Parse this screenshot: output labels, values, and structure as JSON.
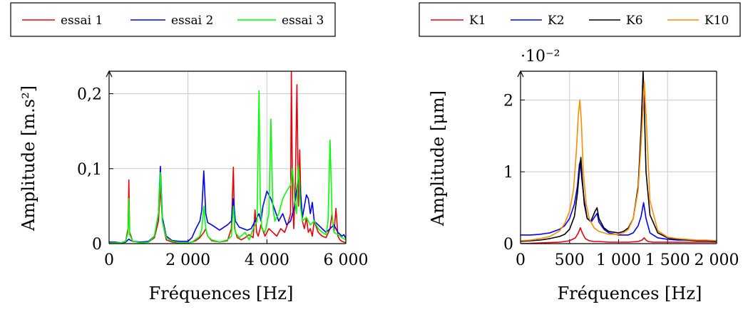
{
  "chart_data": [
    {
      "type": "line",
      "xlabel": "Fréquences [Hz]",
      "ylabel": "Amplitude [m.s²]",
      "xlim": [
        0,
        6000
      ],
      "ylim": [
        0,
        0.23
      ],
      "grid": true,
      "legend_position": "top",
      "xticks": [
        {
          "value": 0,
          "label": "0"
        },
        {
          "value": 2000,
          "label": "2 000"
        },
        {
          "value": 4000,
          "label": "4 000"
        },
        {
          "value": 6000,
          "label": "6 000"
        }
      ],
      "yticks": [
        {
          "value": 0,
          "label": "0"
        },
        {
          "value": 0.1,
          "label": "0,1"
        },
        {
          "value": 0.2,
          "label": "0,2"
        }
      ],
      "series": [
        {
          "name": "essai 1",
          "color": "#e8000b",
          "x": [
            0,
            150,
            300,
            420,
            480,
            500,
            520,
            600,
            800,
            1000,
            1150,
            1250,
            1300,
            1350,
            1450,
            1600,
            1800,
            2000,
            2100,
            2200,
            2300,
            2400,
            2450,
            2500,
            2600,
            2800,
            3000,
            3100,
            3150,
            3180,
            3250,
            3350,
            3450,
            3550,
            3650,
            3700,
            3740,
            3780,
            3850,
            3950,
            4050,
            4150,
            4250,
            4350,
            4450,
            4550,
            4600,
            4620,
            4650,
            4680,
            4720,
            4760,
            4800,
            4830,
            4860,
            4900,
            4950,
            5000,
            5050,
            5100,
            5150,
            5200,
            5300,
            5400,
            5500,
            5600,
            5650,
            5700,
            5750,
            5800,
            5850,
            5900,
            5950,
            6000
          ],
          "values": [
            0.001,
            0.001,
            0.001,
            0.003,
            0.02,
            0.085,
            0.015,
            0.003,
            0.001,
            0.002,
            0.008,
            0.03,
            0.075,
            0.03,
            0.005,
            0.002,
            0.001,
            0.001,
            0.002,
            0.004,
            0.008,
            0.015,
            0.02,
            0.01,
            0.004,
            0.002,
            0.004,
            0.02,
            0.102,
            0.02,
            0.008,
            0.005,
            0.008,
            0.012,
            0.008,
            0.045,
            0.015,
            0.01,
            0.025,
            0.01,
            0.02,
            0.015,
            0.01,
            0.02,
            0.015,
            0.03,
            0.04,
            0.23,
            0.06,
            0.02,
            0.08,
            0.212,
            0.05,
            0.125,
            0.06,
            0.03,
            0.02,
            0.035,
            0.015,
            0.02,
            0.01,
            0.03,
            0.015,
            0.01,
            0.008,
            0.02,
            0.04,
            0.015,
            0.047,
            0.01,
            0.005,
            0.003,
            0.002,
            0.001
          ]
        },
        {
          "name": "essai 2",
          "color": "#0000ff",
          "x": [
            0,
            150,
            300,
            420,
            480,
            500,
            520,
            600,
            800,
            1000,
            1150,
            1250,
            1300,
            1350,
            1450,
            1600,
            1800,
            2000,
            2100,
            2200,
            2300,
            2350,
            2400,
            2450,
            2500,
            2600,
            2800,
            3000,
            3100,
            3150,
            3200,
            3300,
            3400,
            3500,
            3600,
            3700,
            3800,
            3850,
            3900,
            4000,
            4100,
            4200,
            4300,
            4400,
            4500,
            4600,
            4700,
            4800,
            4850,
            4900,
            5000,
            5050,
            5100,
            5150,
            5200,
            5300,
            5400,
            5500,
            5600,
            5700,
            5800,
            5900,
            5950,
            6000
          ],
          "values": [
            0.002,
            0.002,
            0.001,
            0.002,
            0.005,
            0.006,
            0.005,
            0.003,
            0.002,
            0.003,
            0.01,
            0.04,
            0.103,
            0.035,
            0.01,
            0.004,
            0.003,
            0.003,
            0.008,
            0.02,
            0.03,
            0.045,
            0.097,
            0.04,
            0.028,
            0.025,
            0.018,
            0.025,
            0.03,
            0.06,
            0.03,
            0.022,
            0.02,
            0.018,
            0.02,
            0.03,
            0.04,
            0.03,
            0.05,
            0.07,
            0.06,
            0.045,
            0.03,
            0.04,
            0.025,
            0.03,
            0.05,
            0.09,
            0.07,
            0.035,
            0.065,
            0.06,
            0.04,
            0.055,
            0.03,
            0.025,
            0.02,
            0.015,
            0.02,
            0.025,
            0.015,
            0.01,
            0.012,
            0.007
          ]
        },
        {
          "name": "essai 3",
          "color": "#00ff00",
          "x": [
            0,
            150,
            300,
            420,
            480,
            500,
            520,
            600,
            800,
            1000,
            1150,
            1250,
            1300,
            1350,
            1450,
            1600,
            1800,
            2000,
            2100,
            2200,
            2300,
            2350,
            2400,
            2450,
            2500,
            2600,
            2800,
            3000,
            3100,
            3150,
            3200,
            3300,
            3450,
            3550,
            3650,
            3750,
            3800,
            3830,
            3870,
            3950,
            4050,
            4100,
            4150,
            4200,
            4300,
            4400,
            4500,
            4600,
            4650,
            4700,
            4750,
            4800,
            4850,
            4900,
            5000,
            5100,
            5200,
            5300,
            5400,
            5500,
            5550,
            5600,
            5650,
            5700,
            5800,
            5900,
            6000
          ],
          "values": [
            0.001,
            0.001,
            0.001,
            0.003,
            0.015,
            0.06,
            0.012,
            0.003,
            0.001,
            0.002,
            0.01,
            0.04,
            0.095,
            0.03,
            0.008,
            0.003,
            0.001,
            0.001,
            0.002,
            0.006,
            0.01,
            0.02,
            0.05,
            0.02,
            0.01,
            0.005,
            0.002,
            0.005,
            0.01,
            0.05,
            0.015,
            0.008,
            0.015,
            0.005,
            0.02,
            0.03,
            0.204,
            0.06,
            0.02,
            0.015,
            0.04,
            0.166,
            0.05,
            0.03,
            0.04,
            0.06,
            0.07,
            0.078,
            0.1,
            0.06,
            0.04,
            0.105,
            0.05,
            0.03,
            0.035,
            0.025,
            0.03,
            0.02,
            0.015,
            0.012,
            0.03,
            0.138,
            0.04,
            0.015,
            0.012,
            0.008,
            0.005
          ]
        }
      ]
    },
    {
      "type": "line",
      "xlabel": "Fréquences [Hz]",
      "ylabel": "Amplitude [μm]",
      "y_multiplier": "·10⁻²",
      "xlim": [
        0,
        2000
      ],
      "ylim": [
        0,
        2.4
      ],
      "grid": true,
      "legend_position": "top",
      "xticks": [
        {
          "value": 0,
          "label": "0"
        },
        {
          "value": 500,
          "label": "500"
        },
        {
          "value": 1000,
          "label": "1 000"
        },
        {
          "value": 1500,
          "label": "1 500"
        },
        {
          "value": 2000,
          "label": "2 000"
        }
      ],
      "yticks": [
        {
          "value": 0,
          "label": "0"
        },
        {
          "value": 1,
          "label": "1"
        },
        {
          "value": 2,
          "label": "2"
        }
      ],
      "series": [
        {
          "name": "K1",
          "color": "#e8000b",
          "x": [
            0,
            200,
            400,
            500,
            560,
            590,
            610,
            630,
            660,
            700,
            750,
            800,
            900,
            1000,
            1100,
            1200,
            1240,
            1260,
            1280,
            1300,
            1350,
            1400,
            1500,
            1600,
            1700,
            1800,
            1900,
            2000
          ],
          "values": [
            0.0,
            0.01,
            0.02,
            0.04,
            0.08,
            0.15,
            0.22,
            0.15,
            0.07,
            0.04,
            0.03,
            0.03,
            0.02,
            0.02,
            0.02,
            0.03,
            0.05,
            0.08,
            0.05,
            0.03,
            0.02,
            0.02,
            0.02,
            0.02,
            0.02,
            0.02,
            0.02,
            0.02
          ]
        },
        {
          "name": "K2",
          "color": "#0000ff",
          "x": [
            0,
            100,
            200,
            300,
            400,
            450,
            500,
            550,
            580,
            600,
            610,
            625,
            650,
            680,
            720,
            760,
            780,
            800,
            850,
            900,
            1000,
            1100,
            1150,
            1200,
            1230,
            1255,
            1280,
            1320,
            1400,
            1500,
            1600,
            1700,
            1800,
            1900,
            2000
          ],
          "values": [
            0.12,
            0.12,
            0.13,
            0.15,
            0.2,
            0.25,
            0.35,
            0.55,
            0.8,
            1.1,
            1.15,
            0.9,
            0.6,
            0.35,
            0.3,
            0.38,
            0.42,
            0.3,
            0.2,
            0.15,
            0.12,
            0.12,
            0.15,
            0.25,
            0.38,
            0.57,
            0.35,
            0.15,
            0.08,
            0.06,
            0.05,
            0.05,
            0.04,
            0.04,
            0.04
          ]
        },
        {
          "name": "K6",
          "color": "#000000",
          "x": [
            0,
            100,
            200,
            300,
            400,
            450,
            500,
            550,
            580,
            600,
            615,
            630,
            650,
            680,
            720,
            760,
            780,
            800,
            850,
            900,
            1000,
            1050,
            1100,
            1150,
            1200,
            1230,
            1250,
            1260,
            1280,
            1320,
            1400,
            1500,
            1600,
            1700,
            1800,
            1900,
            2000
          ],
          "values": [
            0.03,
            0.04,
            0.05,
            0.07,
            0.1,
            0.13,
            0.2,
            0.38,
            0.7,
            1.0,
            1.2,
            0.9,
            0.55,
            0.35,
            0.32,
            0.45,
            0.5,
            0.35,
            0.22,
            0.17,
            0.15,
            0.17,
            0.22,
            0.35,
            0.8,
            1.6,
            2.4,
            2.0,
            1.0,
            0.4,
            0.15,
            0.08,
            0.06,
            0.05,
            0.04,
            0.04,
            0.03
          ]
        },
        {
          "name": "K10",
          "color": "#ff8c00",
          "x": [
            0,
            100,
            200,
            300,
            400,
            450,
            500,
            540,
            570,
            590,
            605,
            620,
            640,
            670,
            700,
            750,
            800,
            900,
            1000,
            1050,
            1100,
            1150,
            1200,
            1230,
            1250,
            1262,
            1280,
            1320,
            1400,
            1500,
            1600,
            1700,
            1800,
            1900,
            2000
          ],
          "values": [
            0.04,
            0.05,
            0.07,
            0.1,
            0.18,
            0.28,
            0.45,
            0.75,
            1.3,
            1.8,
            2.0,
            1.7,
            1.0,
            0.55,
            0.35,
            0.22,
            0.17,
            0.13,
            0.13,
            0.15,
            0.2,
            0.35,
            0.75,
            1.4,
            1.9,
            2.25,
            1.8,
            0.6,
            0.18,
            0.09,
            0.07,
            0.06,
            0.05,
            0.05,
            0.04
          ]
        }
      ]
    }
  ]
}
